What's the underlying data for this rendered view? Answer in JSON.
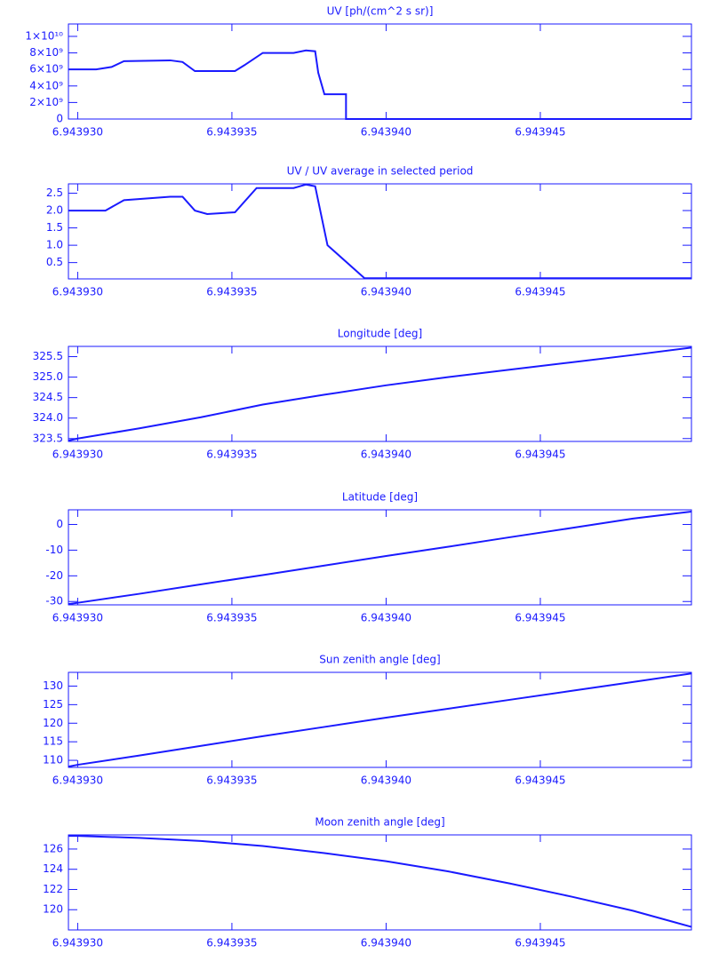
{
  "chart_data": [
    {
      "type": "line",
      "title": "UV [ph/(cm^2 s sr)]",
      "color": "#1a1aff",
      "x": [
        6.9439297,
        6.9439306,
        6.9439311,
        6.9439315,
        6.943933,
        6.9439334,
        6.9439338,
        6.9439351,
        6.9439354,
        6.943936,
        6.943937,
        6.9439374,
        6.9439377,
        6.9439378,
        6.943938,
        6.9439387,
        6.9439387,
        6.9439499
      ],
      "values": [
        6000000000,
        6000000000,
        6300000000,
        7000000000,
        7100000000,
        6900000000,
        5800000000,
        5800000000,
        6500000000,
        8000000000,
        8000000000,
        8300000000,
        8200000000,
        5600000000,
        3000000000,
        3000000000,
        0,
        0
      ],
      "xlim": [
        6.9439297,
        6.9439499
      ],
      "xticks": [
        {
          "value": 6.94393,
          "label": "6.943930"
        },
        {
          "value": 6.943935,
          "label": "6.943935"
        },
        {
          "value": 6.94394,
          "label": "6.943940"
        },
        {
          "value": 6.943945,
          "label": "6.943945"
        }
      ],
      "ylim": [
        0,
        11500000000
      ],
      "yticks": [
        0,
        {
          "value": 2000000000,
          "label": "2×10⁹"
        },
        {
          "value": 4000000000,
          "label": "4×10⁹"
        },
        {
          "value": 6000000000,
          "label": "6×10⁹"
        },
        {
          "value": 8000000000,
          "label": "8×10⁹"
        },
        {
          "value": 10000000000,
          "label": "1×10¹⁰"
        }
      ]
    },
    {
      "type": "line",
      "title": "UV / UV average in selected period",
      "color": "#1a1aff",
      "x": [
        6.9439297,
        6.9439309,
        6.9439315,
        6.943933,
        6.9439334,
        6.9439338,
        6.9439342,
        6.9439351,
        6.9439358,
        6.943937,
        6.9439374,
        6.9439377,
        6.9439381,
        6.9439393,
        6.9439499
      ],
      "values": [
        2.0,
        2.0,
        2.3,
        2.4,
        2.4,
        2.0,
        1.9,
        1.95,
        2.65,
        2.65,
        2.75,
        2.7,
        1.0,
        0.05,
        0.05
      ],
      "xlim": [
        6.9439297,
        6.9439499
      ],
      "xticks": [
        {
          "value": 6.94393,
          "label": "6.943930"
        },
        {
          "value": 6.943935,
          "label": "6.943935"
        },
        {
          "value": 6.94394,
          "label": "6.943940"
        },
        {
          "value": 6.943945,
          "label": "6.943945"
        }
      ],
      "ylim": [
        0.03,
        2.77
      ],
      "yticks": [
        0.5,
        {
          "value": 1,
          "label": "1.0"
        },
        1.5,
        {
          "value": 2,
          "label": "2.0"
        },
        2.5
      ]
    },
    {
      "type": "line",
      "title": "Longitude [deg]",
      "color": "#1a1aff",
      "x": [
        6.9439297,
        6.94393,
        6.943932,
        6.943934,
        6.943936,
        6.943938,
        6.94394,
        6.943942,
        6.943944,
        6.943946,
        6.943948,
        6.9439499
      ],
      "values": [
        323.45,
        323.5,
        323.75,
        324.02,
        324.33,
        324.57,
        324.8,
        325.0,
        325.18,
        325.36,
        325.54,
        325.72
      ],
      "xlim": [
        6.9439297,
        6.9439499
      ],
      "xticks": [
        {
          "value": 6.94393,
          "label": "6.943930"
        },
        {
          "value": 6.943935,
          "label": "6.943935"
        },
        {
          "value": 6.94394,
          "label": "6.943940"
        },
        {
          "value": 6.943945,
          "label": "6.943945"
        }
      ],
      "ylim": [
        323.43,
        325.75
      ],
      "yticks": [
        323.5,
        {
          "value": 324,
          "label": "324.0"
        },
        324.5,
        {
          "value": 325,
          "label": "325.0"
        },
        325.5
      ]
    },
    {
      "type": "line",
      "title": "Latitude [deg]",
      "color": "#1a1aff",
      "x": [
        6.9439297,
        6.94393,
        6.943932,
        6.943934,
        6.943936,
        6.943938,
        6.94394,
        6.943942,
        6.943944,
        6.943946,
        6.943948,
        6.9439499
      ],
      "values": [
        -31,
        -30.5,
        -27,
        -23.3,
        -19.7,
        -16,
        -12.3,
        -8.7,
        -5,
        -1.4,
        2.3,
        5
      ],
      "xlim": [
        6.9439297,
        6.9439499
      ],
      "xticks": [
        {
          "value": 6.94393,
          "label": "6.943930"
        },
        {
          "value": 6.943935,
          "label": "6.943935"
        },
        {
          "value": 6.94394,
          "label": "6.943940"
        },
        {
          "value": 6.943945,
          "label": "6.943945"
        }
      ],
      "ylim": [
        -31.3,
        5.7
      ],
      "yticks": [
        -30,
        -20,
        -10,
        0
      ]
    },
    {
      "type": "line",
      "title": "Sun zenith angle [deg]",
      "color": "#1a1aff",
      "x": [
        6.9439297,
        6.94393,
        6.943932,
        6.943934,
        6.943936,
        6.943938,
        6.94394,
        6.943942,
        6.943944,
        6.943946,
        6.943948,
        6.9439499
      ],
      "values": [
        108.3,
        108.8,
        111.3,
        113.9,
        116.5,
        119.0,
        121.5,
        123.9,
        126.3,
        128.7,
        131.1,
        133.4
      ],
      "xlim": [
        6.9439297,
        6.9439499
      ],
      "xticks": [
        {
          "value": 6.94393,
          "label": "6.943930"
        },
        {
          "value": 6.943935,
          "label": "6.943935"
        },
        {
          "value": 6.94394,
          "label": "6.943940"
        },
        {
          "value": 6.943945,
          "label": "6.943945"
        }
      ],
      "ylim": [
        108.1,
        133.7
      ],
      "yticks": [
        110,
        115,
        120,
        125,
        130
      ]
    },
    {
      "type": "line",
      "title": "Moon zenith angle [deg]",
      "color": "#1a1aff",
      "x": [
        6.9439297,
        6.94393,
        6.943932,
        6.943934,
        6.943936,
        6.943938,
        6.94394,
        6.943942,
        6.943944,
        6.943946,
        6.943948,
        6.9439499
      ],
      "values": [
        127.3,
        127.3,
        127.1,
        126.8,
        126.3,
        125.6,
        124.8,
        123.8,
        122.6,
        121.3,
        119.9,
        118.3
      ],
      "xlim": [
        6.9439297,
        6.9439499
      ],
      "xticks": [
        {
          "value": 6.94393,
          "label": "6.943930"
        },
        {
          "value": 6.943935,
          "label": "6.943935"
        },
        {
          "value": 6.94394,
          "label": "6.943940"
        },
        {
          "value": 6.943945,
          "label": "6.943945"
        }
      ],
      "ylim": [
        118.0,
        127.4
      ],
      "yticks": [
        120,
        122,
        124,
        126
      ]
    }
  ]
}
